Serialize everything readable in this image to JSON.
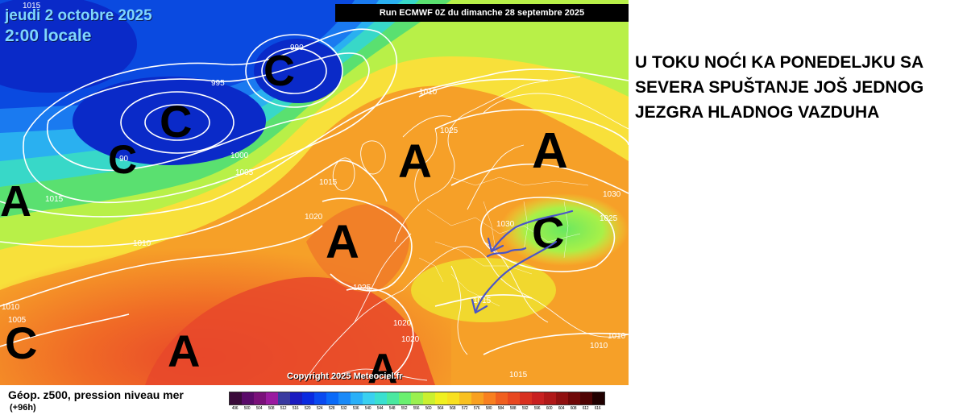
{
  "map": {
    "date_label": "jeudi 2 octobre 2025",
    "time_label": "2:00 locale",
    "run_label": "Run ECMWF 0Z du dimanche 28 septembre 2025",
    "copyright": "Copyright 2025 Meteociel.fr",
    "high_symbol": "A",
    "low_symbol": "C",
    "isobar_labels": [
      "1015",
      "990",
      "995",
      "1010",
      "1000",
      "1005",
      "1015",
      "1025",
      "1015",
      "1030",
      "1020",
      "1030",
      "1025",
      "1010",
      "1025",
      "1010",
      "1005",
      "1020",
      "1020",
      "1015",
      "1010",
      "1010",
      "1015",
      "90"
    ],
    "arrow_color": "#4a55c8"
  },
  "legend": {
    "title": "Géop. z500, pression niveau mer",
    "subtitle": "(+96h)",
    "scale_values": [
      "496",
      "500",
      "504",
      "508",
      "512",
      "516",
      "520",
      "524",
      "528",
      "532",
      "536",
      "540",
      "544",
      "548",
      "552",
      "556",
      "560",
      "564",
      "568",
      "572",
      "576",
      "580",
      "584",
      "588",
      "592",
      "596",
      "600",
      "604",
      "608",
      "612",
      "616"
    ],
    "scale_colors": [
      "#3a0a3a",
      "#5a0a6a",
      "#7a107a",
      "#9a1aa0",
      "#3a3aa0",
      "#1a1ac0",
      "#0a2ae0",
      "#0a4af0",
      "#0a6af8",
      "#1a8af8",
      "#2ab0f8",
      "#3ad0f0",
      "#3ae0d0",
      "#4ae8a0",
      "#6af070",
      "#9af050",
      "#caf030",
      "#f0f020",
      "#f8e020",
      "#f8c020",
      "#f8a020",
      "#f88020",
      "#f06020",
      "#e84820",
      "#d83020",
      "#c82020",
      "#b01818",
      "#901010",
      "#700808",
      "#500404",
      "#200000"
    ]
  },
  "comment": {
    "lines": [
      "U TOKU NOĆI KA PONEDELJKU SA",
      "SEVERA SPUŠTANJE JOŠ JEDNOG",
      "JEZGRA HLADNOG VAZDUHA"
    ]
  }
}
